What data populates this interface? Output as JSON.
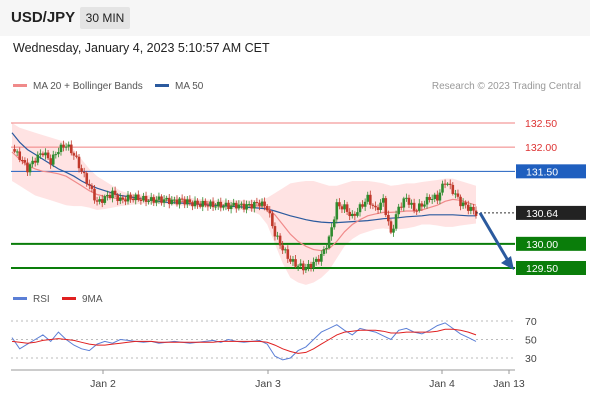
{
  "header": {
    "pair": "USD/JPY",
    "timeframe": "30 MIN"
  },
  "datetime": "Wednesday, January 4, 2023 5:10:57 AM CET",
  "legend": {
    "ma20": "MA 20 + Bollinger Bands",
    "ma50": "MA 50",
    "rsi": "RSI",
    "rsi_ma": "9MA"
  },
  "credit": "Research © 2023 Trading Central",
  "colors": {
    "ma20": "#f08a8a",
    "ma50": "#2b5a9e",
    "bollinger": "#ffd9d9",
    "up": "#2e8b2e",
    "down": "#c0392b",
    "support": "#0a7d0a",
    "resistance": "#f08080",
    "pivot": "#1f5fbf",
    "current": "#222222",
    "rsi": "#5b7fd6",
    "rsi_ma": "#e02020",
    "arrow": "#2b5a9e"
  },
  "chart_data": [
    {
      "type": "candlestick",
      "title": "USD/JPY 30 MIN",
      "ylim": [
        129.0,
        133.0
      ],
      "x_ticks": [
        "Jan 2",
        "Jan 3",
        "Jan 4",
        "Jan 13"
      ],
      "current_price": "130.64",
      "levels": [
        {
          "value": 132.5,
          "label": "132.50",
          "kind": "resistance"
        },
        {
          "value": 132.0,
          "label": "132.00",
          "kind": "resistance"
        },
        {
          "value": 131.5,
          "label": "131.50",
          "kind": "pivot"
        },
        {
          "value": 130.0,
          "label": "130.00",
          "kind": "support"
        },
        {
          "value": 129.5,
          "label": "129.50",
          "kind": "support"
        }
      ],
      "price_path": [
        131.96,
        131.8,
        131.55,
        131.75,
        131.9,
        131.7,
        131.95,
        132.05,
        131.85,
        131.5,
        131.2,
        130.85,
        130.95,
        131.05,
        130.9,
        130.95,
        130.95,
        130.92,
        130.9,
        130.92,
        130.9,
        130.88,
        130.9,
        130.85,
        130.82,
        130.82,
        130.8,
        130.8,
        130.78,
        130.8,
        130.78,
        130.8,
        130.85,
        130.75,
        130.2,
        129.9,
        129.65,
        129.55,
        129.5,
        129.6,
        129.75,
        130.1,
        130.8,
        130.75,
        130.55,
        130.75,
        130.95,
        130.7,
        130.9,
        130.2,
        130.75,
        130.95,
        130.7,
        130.8,
        130.95,
        130.95,
        131.3,
        131.1,
        130.85,
        130.75,
        130.64
      ],
      "ma20_path": [
        131.9,
        131.75,
        131.62,
        131.55,
        131.5,
        131.48,
        131.45,
        131.4,
        131.3,
        131.2,
        131.1,
        131.02,
        130.98,
        130.95,
        130.93,
        130.92,
        130.92,
        130.92,
        130.91,
        130.9,
        130.9,
        130.88,
        130.87,
        130.86,
        130.84,
        130.83,
        130.82,
        130.81,
        130.8,
        130.8,
        130.8,
        130.79,
        130.78,
        130.75,
        130.6,
        130.4,
        130.2,
        130.05,
        129.95,
        129.88,
        129.86,
        129.9,
        130.05,
        130.25,
        130.4,
        130.5,
        130.58,
        130.62,
        130.65,
        130.65,
        130.66,
        130.68,
        130.68,
        130.7,
        130.75,
        130.8,
        130.88,
        130.92,
        130.9,
        130.85,
        130.8
      ],
      "ma50_path": [
        132.3,
        132.1,
        131.95,
        131.85,
        131.75,
        131.65,
        131.55,
        131.48,
        131.4,
        131.3,
        131.22,
        131.15,
        131.1,
        131.05,
        131.0,
        130.98,
        130.95,
        130.92,
        130.9,
        130.88,
        130.86,
        130.85,
        130.84,
        130.83,
        130.82,
        130.81,
        130.8,
        130.79,
        130.78,
        130.77,
        130.76,
        130.75,
        130.74,
        130.72,
        130.68,
        130.63,
        130.58,
        130.54,
        130.5,
        130.47,
        130.45,
        130.44,
        130.44,
        130.45,
        130.46,
        130.47,
        130.48,
        130.5,
        130.52,
        130.53,
        130.54,
        130.56,
        130.57,
        130.58,
        130.6,
        130.6,
        130.6,
        130.6,
        130.59,
        130.58,
        130.58
      ],
      "bollinger_upper": [
        132.5,
        132.4,
        132.35,
        132.3,
        132.25,
        132.2,
        132.15,
        132.1,
        131.95,
        131.75,
        131.55,
        131.4,
        131.3,
        131.2,
        131.1,
        131.05,
        131.03,
        131.02,
        131.0,
        131.0,
        130.98,
        130.97,
        130.96,
        130.95,
        130.93,
        130.92,
        130.91,
        130.9,
        130.9,
        130.9,
        130.9,
        130.9,
        130.92,
        130.95,
        131.05,
        131.15,
        131.25,
        131.28,
        131.3,
        131.3,
        131.25,
        131.2,
        131.2,
        131.25,
        131.3,
        131.3,
        131.3,
        131.28,
        131.25,
        131.2,
        131.22,
        131.25,
        131.25,
        131.28,
        131.3,
        131.32,
        131.35,
        131.35,
        131.3,
        131.25,
        131.2
      ],
      "bollinger_lower": [
        131.3,
        131.2,
        131.1,
        131.0,
        130.95,
        130.9,
        130.85,
        130.8,
        130.78,
        130.78,
        130.75,
        130.7,
        130.72,
        130.75,
        130.78,
        130.8,
        130.82,
        130.83,
        130.83,
        130.82,
        130.82,
        130.8,
        130.79,
        130.78,
        130.76,
        130.75,
        130.74,
        130.73,
        130.72,
        130.71,
        130.7,
        130.68,
        130.6,
        130.4,
        130.0,
        129.6,
        129.3,
        129.2,
        129.15,
        129.2,
        129.3,
        129.45,
        129.7,
        129.95,
        130.1,
        130.2,
        130.25,
        130.3,
        130.32,
        130.3,
        130.3,
        130.32,
        130.35,
        130.4,
        130.4,
        130.38,
        130.35,
        130.35,
        130.38,
        130.4,
        130.42
      ],
      "forecast": {
        "from": 130.64,
        "to": 129.5
      }
    },
    {
      "type": "line",
      "title": "RSI",
      "ylim": [
        20,
        80
      ],
      "y_ticks": [
        "70",
        "50",
        "30"
      ],
      "series": [
        {
          "name": "RSI",
          "values": [
            52,
            40,
            45,
            50,
            55,
            48,
            58,
            50,
            44,
            40,
            38,
            45,
            48,
            46,
            50,
            49,
            48,
            47,
            48,
            46,
            47,
            48,
            47,
            46,
            47,
            48,
            49,
            47,
            50,
            48,
            47,
            48,
            49,
            45,
            32,
            28,
            30,
            38,
            42,
            50,
            58,
            62,
            66,
            60,
            55,
            62,
            60,
            58,
            54,
            50,
            60,
            62,
            58,
            56,
            60,
            65,
            68,
            62,
            56,
            52,
            48
          ]
        },
        {
          "name": "9MA",
          "values": [
            48,
            47,
            46,
            47,
            49,
            50,
            51,
            50,
            49,
            47,
            45,
            44,
            44,
            45,
            46,
            47,
            48,
            48,
            48,
            47,
            47,
            47,
            47,
            47,
            47,
            47,
            47,
            48,
            48,
            48,
            48,
            48,
            48,
            47,
            44,
            40,
            37,
            35,
            36,
            40,
            45,
            50,
            55,
            58,
            59,
            60,
            60,
            60,
            59,
            57,
            57,
            58,
            58,
            58,
            58,
            59,
            61,
            61,
            60,
            58,
            55
          ]
        }
      ]
    }
  ]
}
